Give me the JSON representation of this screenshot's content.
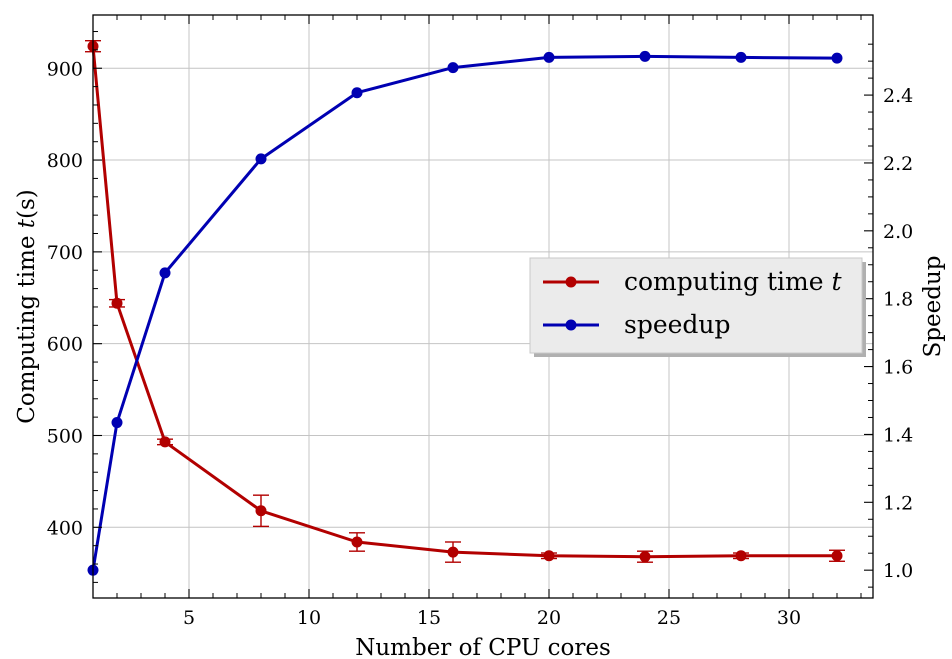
{
  "chart_data": {
    "type": "line",
    "xlabel": "Number of CPU cores",
    "ylabel_left": "Computing time t(s)",
    "ylabel_left_parts": {
      "prefix": "Computing time ",
      "var": "t",
      "suffix": "(s)"
    },
    "ylabel_right": "Speedup",
    "xlim": [
      1,
      33.5
    ],
    "ylim_left": [
      323,
      958
    ],
    "ylim_right": [
      0.918,
      2.636
    ],
    "xticks": [
      5,
      10,
      15,
      20,
      25,
      30
    ],
    "yticks_left": [
      400,
      500,
      600,
      700,
      800,
      900
    ],
    "yticks_right": [
      1.0,
      1.2,
      1.4,
      1.6,
      1.8,
      2.0,
      2.2,
      2.4
    ],
    "grid": true,
    "legend_position": "center-right",
    "x": [
      1,
      2,
      4,
      8,
      12,
      16,
      20,
      24,
      28,
      32
    ],
    "series": [
      {
        "name": "computing time t",
        "legend_parts": {
          "prefix": "computing time ",
          "var": "t"
        },
        "axis": "left",
        "color": "#b20000",
        "values": [
          924,
          644,
          493,
          418,
          384,
          373,
          369,
          368,
          369,
          369
        ],
        "error": [
          6,
          4,
          3,
          17,
          10,
          11,
          3,
          6,
          3,
          6
        ]
      },
      {
        "name": "speedup",
        "axis": "right",
        "color": "#0000b2",
        "values": [
          1.0,
          1.435,
          1.876,
          2.212,
          2.407,
          2.481,
          2.511,
          2.514,
          2.511,
          2.509
        ]
      }
    ]
  }
}
